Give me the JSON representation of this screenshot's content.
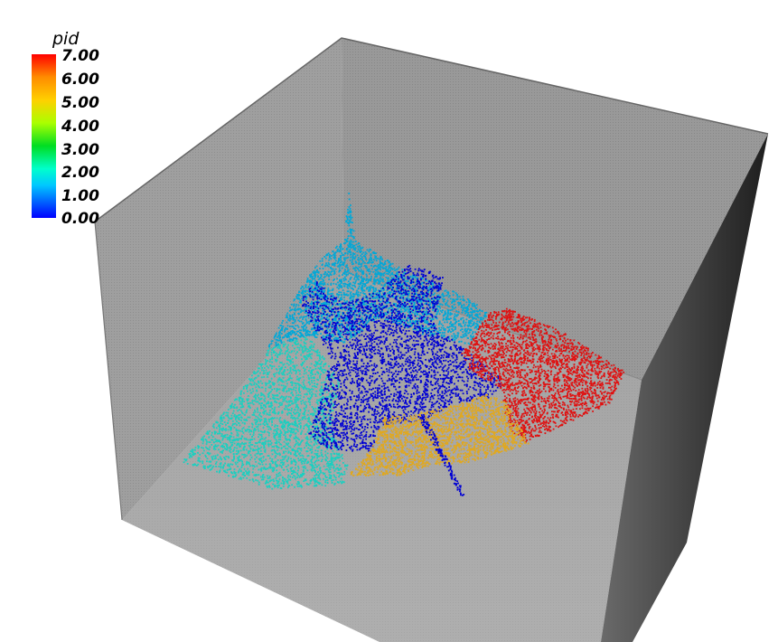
{
  "legend": {
    "title": "pid",
    "ticks": [
      "7.00",
      "6.00",
      "5.00",
      "4.00",
      "3.00",
      "2.00",
      "1.00",
      "0.00"
    ]
  },
  "colors": {
    "box_face": "#8c8c8c",
    "box_edge": "#5a5a5a",
    "pid0": "#0000d4",
    "pid1": "#00a8d8",
    "pid2": "#18d0c0",
    "pid6": "#e0a820",
    "pid7": "#e01010"
  }
}
